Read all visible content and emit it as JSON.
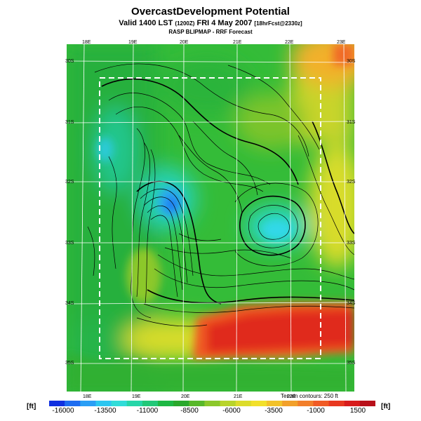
{
  "title": "OvercastDevelopment Potential",
  "subtitle": {
    "pre": "Valid 1400 LST",
    "utc": "(1200Z)",
    "mid": "FRI 4 May 2007",
    "fcst": "[18hrFcst@2330z]"
  },
  "source": "RASP BLIPMAP - RRF Forecast",
  "axes": {
    "top_lon": [
      "18E",
      "19E",
      "20E",
      "21E",
      "22E",
      "23E"
    ],
    "bottom_lon": [
      "18E",
      "19E",
      "20E",
      "21E",
      "22E"
    ],
    "left_lat": [
      "30S",
      "31S",
      "32S",
      "33S",
      "34S",
      "35S"
    ],
    "right_lat": [
      "30S",
      "31S",
      "32S",
      "33S",
      "34S",
      "35S"
    ]
  },
  "contour_note": "Terrain contours: 250 ft",
  "unit_left": "[ft]",
  "unit_right": "[ft]",
  "colorbar": {
    "labels": [
      "-16000",
      "-13500",
      "-11000",
      "-8500",
      "-6000",
      "-3500",
      "-1000",
      "1500"
    ],
    "colors": [
      "#1030e0",
      "#1d6cf0",
      "#2a9ef5",
      "#2cc6f0",
      "#30dcd8",
      "#26d6a8",
      "#22c878",
      "#1eb844",
      "#2aa82c",
      "#58b82a",
      "#8cc82a",
      "#b8d42a",
      "#dcdc2a",
      "#f2e02a",
      "#f2c22a",
      "#f2a02a",
      "#f27e2a",
      "#f05a24",
      "#e83820",
      "#d81c1c",
      "#b8101a"
    ]
  },
  "colors": {
    "domain_box": "#ffffff",
    "grid": "#ffffff",
    "contour": "#000000"
  }
}
